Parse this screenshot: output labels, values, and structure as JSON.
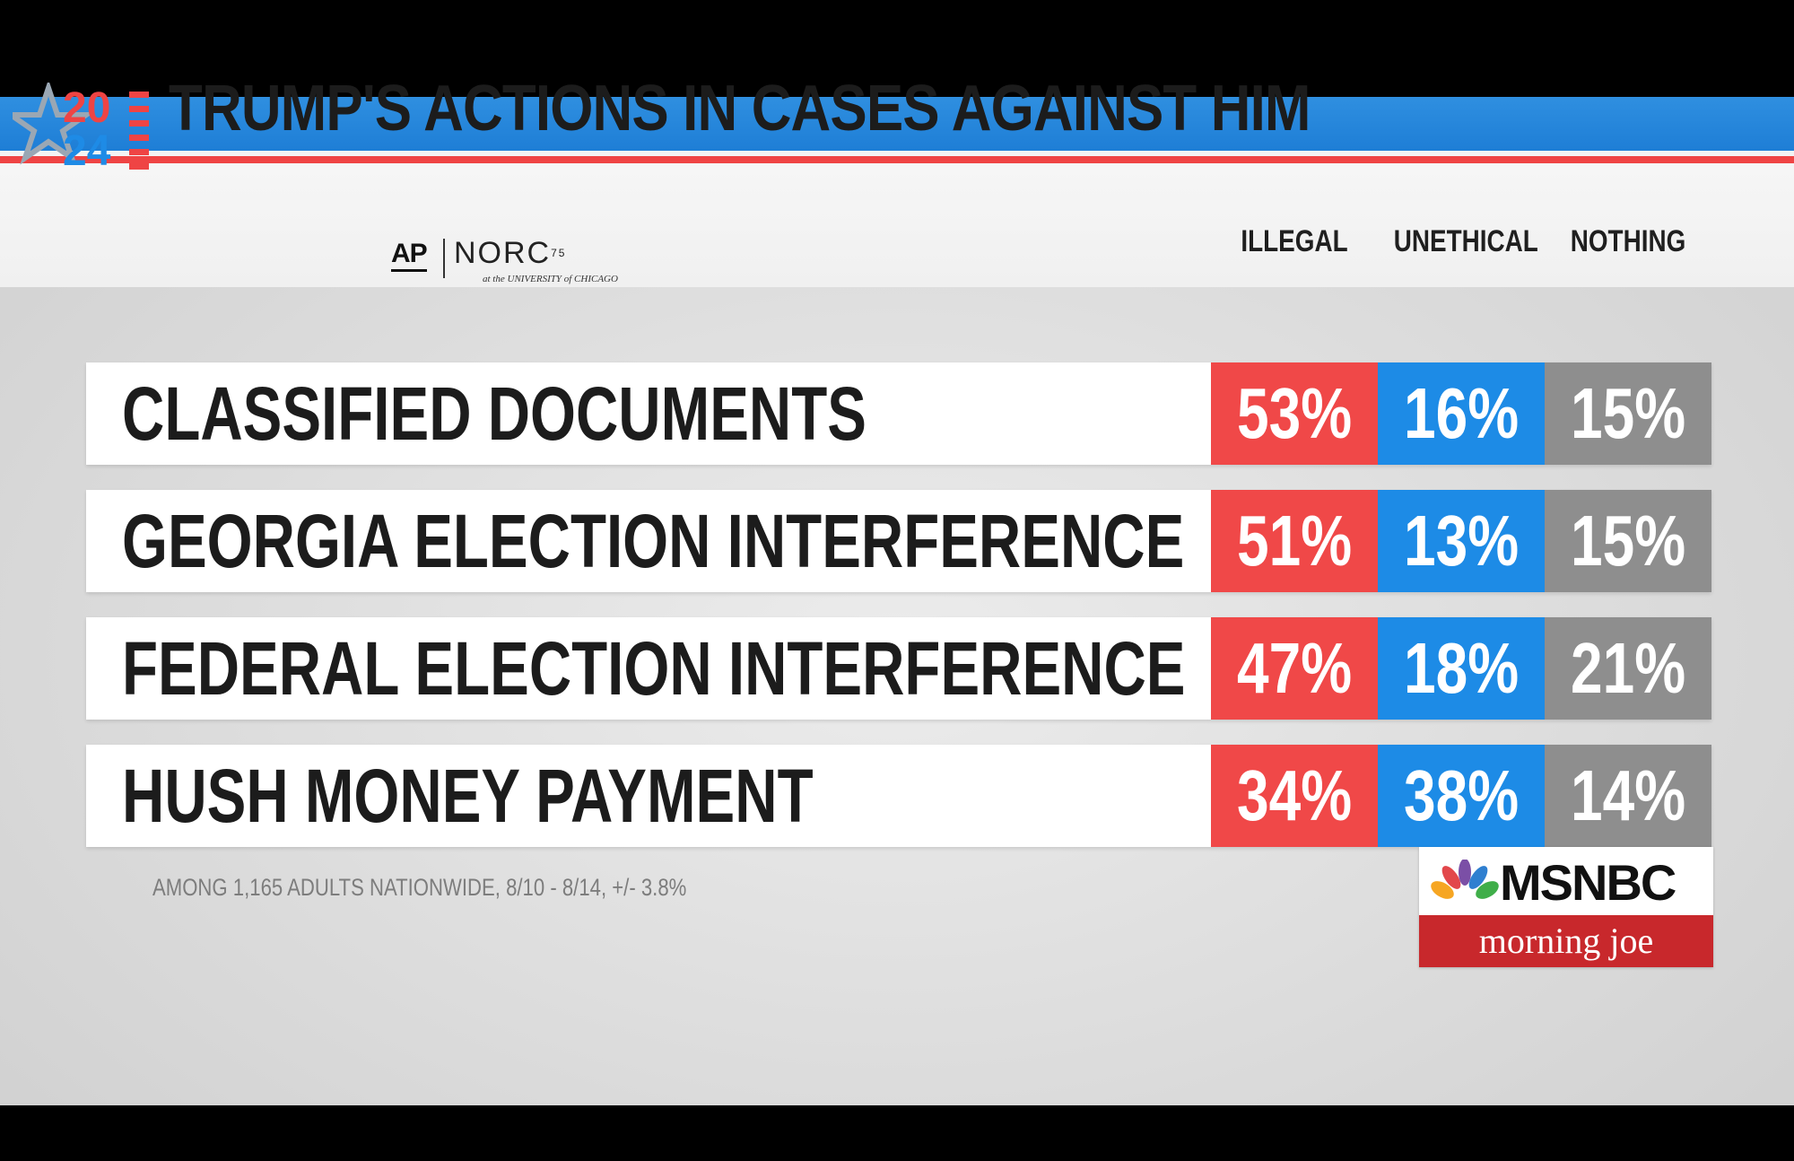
{
  "header": {
    "title": "TRUMP'S ACTIONS IN CASES AGAINST HIM",
    "logo_line1": "20",
    "logo_line2": "24",
    "source_ap": "AP",
    "source_norc": "NORC",
    "source_norc_sup": "75",
    "source_norc_sub": "at the UNIVERSITY of CHICAGO"
  },
  "colors": {
    "illegal": "#f04848",
    "unethical": "#1d8be6",
    "nothing": "#8e8e8e",
    "stripe_blue": "#1e7ed6",
    "stripe_red": "#ef4444"
  },
  "chart_data": {
    "type": "table",
    "columns": [
      "ILLEGAL",
      "UNETHICAL",
      "NOTHING"
    ],
    "rows": [
      {
        "label": "CLASSIFIED DOCUMENTS",
        "values": [
          "53%",
          "16%",
          "15%"
        ]
      },
      {
        "label": "GEORGIA ELECTION INTERFERENCE",
        "values": [
          "51%",
          "13%",
          "15%"
        ]
      },
      {
        "label": "FEDERAL ELECTION INTERFERENCE",
        "values": [
          "47%",
          "18%",
          "21%"
        ]
      },
      {
        "label": "HUSH MONEY PAYMENT",
        "values": [
          "34%",
          "38%",
          "14%"
        ]
      }
    ]
  },
  "footnote": "AMONG 1,165 ADULTS NATIONWIDE, 8/10 - 8/14, +/- 3.8%",
  "branding": {
    "network": "MSNBC",
    "show": "morning joe"
  }
}
